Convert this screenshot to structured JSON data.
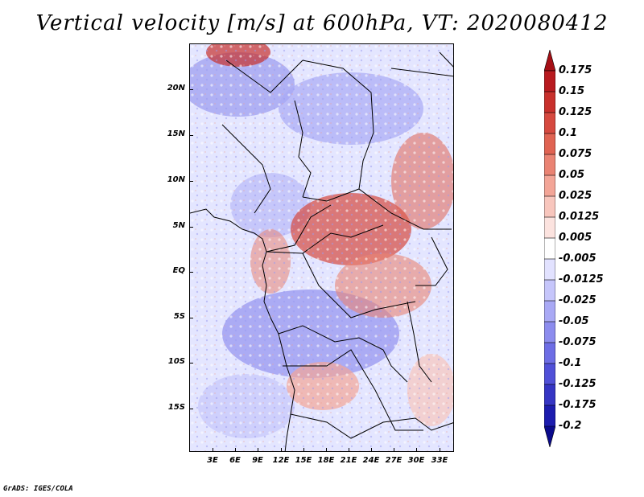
{
  "title": "Vertical velocity [m/s] at 600hPa, VT: 2020080412",
  "credit": "GrADS: IGES/COLA",
  "y_axis_labels": [
    "20N",
    "15N",
    "10N",
    "5N",
    "EQ",
    "5S",
    "10S",
    "15S"
  ],
  "x_axis_labels": [
    "3E",
    "6E",
    "9E",
    "12E",
    "15E",
    "18E",
    "21E",
    "24E",
    "27E",
    "30E",
    "33E"
  ],
  "colorbar": {
    "labels": [
      "0.175",
      "0.15",
      "0.125",
      "0.1",
      "0.075",
      "0.05",
      "0.025",
      "0.0125",
      "0.005",
      "-0.005",
      "-0.0125",
      "-0.025",
      "-0.05",
      "-0.075",
      "-0.1",
      "-0.125",
      "-0.175",
      "-0.2"
    ],
    "colors": [
      "#a50f15",
      "#b81a1f",
      "#c8302c",
      "#d6493f",
      "#e06352",
      "#ea8373",
      "#f3a597",
      "#f8c6bd",
      "#fce3df",
      "#ffffff",
      "#e2e2ff",
      "#c6c6fb",
      "#a9a9f5",
      "#8c8cee",
      "#6d6de5",
      "#5050d8",
      "#3535c4",
      "#1c1cae",
      "#0a0a8c"
    ]
  },
  "colors": {
    "frame": "#000000",
    "background": "#ffffff"
  }
}
